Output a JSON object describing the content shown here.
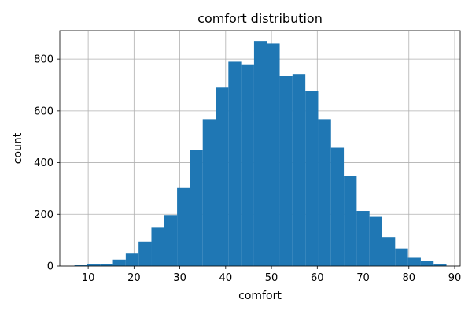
{
  "chart_data": {
    "type": "bar",
    "title": "comfort distribution",
    "xlabel": "comfort",
    "ylabel": "count",
    "xlim": [
      3.8,
      91.2
    ],
    "ylim": [
      0,
      910
    ],
    "grid": true,
    "bar_color": "#1f77b4",
    "xticks": [
      10,
      20,
      30,
      40,
      50,
      60,
      70,
      80,
      90
    ],
    "yticks": [
      0,
      200,
      400,
      600,
      800
    ],
    "bins": [
      {
        "x0": 7.0,
        "x1": 9.8,
        "value": 3
      },
      {
        "x0": 9.8,
        "x1": 12.6,
        "value": 6
      },
      {
        "x0": 12.6,
        "x1": 15.4,
        "value": 8
      },
      {
        "x0": 15.4,
        "x1": 18.2,
        "value": 25
      },
      {
        "x0": 18.2,
        "x1": 21.0,
        "value": 48
      },
      {
        "x0": 21.0,
        "x1": 23.8,
        "value": 95
      },
      {
        "x0": 23.8,
        "x1": 26.6,
        "value": 148
      },
      {
        "x0": 26.6,
        "x1": 29.4,
        "value": 197
      },
      {
        "x0": 29.4,
        "x1": 32.2,
        "value": 302
      },
      {
        "x0": 32.2,
        "x1": 35.0,
        "value": 450
      },
      {
        "x0": 35.0,
        "x1": 37.8,
        "value": 568
      },
      {
        "x0": 37.8,
        "x1": 40.6,
        "value": 690
      },
      {
        "x0": 40.6,
        "x1": 43.4,
        "value": 790
      },
      {
        "x0": 43.4,
        "x1": 46.2,
        "value": 780
      },
      {
        "x0": 46.2,
        "x1": 49.0,
        "value": 870
      },
      {
        "x0": 49.0,
        "x1": 51.8,
        "value": 860
      },
      {
        "x0": 51.8,
        "x1": 54.6,
        "value": 735
      },
      {
        "x0": 54.6,
        "x1": 57.4,
        "value": 742
      },
      {
        "x0": 57.4,
        "x1": 60.2,
        "value": 678
      },
      {
        "x0": 60.2,
        "x1": 63.0,
        "value": 568
      },
      {
        "x0": 63.0,
        "x1": 65.8,
        "value": 458
      },
      {
        "x0": 65.8,
        "x1": 68.6,
        "value": 347
      },
      {
        "x0": 68.6,
        "x1": 71.4,
        "value": 213
      },
      {
        "x0": 71.4,
        "x1": 74.2,
        "value": 190
      },
      {
        "x0": 74.2,
        "x1": 77.0,
        "value": 112
      },
      {
        "x0": 77.0,
        "x1": 79.8,
        "value": 68
      },
      {
        "x0": 79.8,
        "x1": 82.6,
        "value": 32
      },
      {
        "x0": 82.6,
        "x1": 85.4,
        "value": 20
      },
      {
        "x0": 85.4,
        "x1": 88.2,
        "value": 6
      }
    ]
  }
}
